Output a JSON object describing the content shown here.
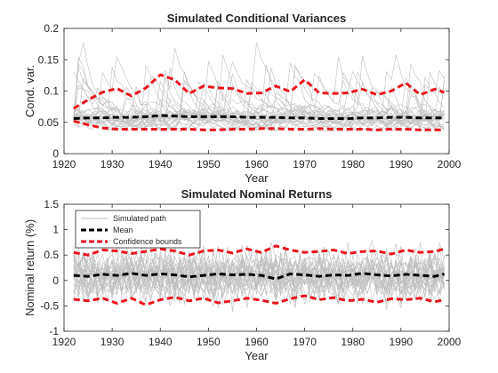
{
  "chart_data": [
    {
      "type": "line",
      "title": "Simulated Conditional Variances",
      "xlabel": "Year",
      "ylabel": "Cond. var.",
      "xlim": [
        1920,
        2000
      ],
      "ylim": [
        0,
        0.2
      ],
      "xticks": [
        1920,
        1930,
        1940,
        1950,
        1960,
        1970,
        1980,
        1990,
        2000
      ],
      "yticks": [
        0,
        0.05,
        0.1,
        0.15,
        0.2
      ],
      "ytick_labels": [
        "0",
        "0.05",
        "0.1",
        "0.15",
        "0.2"
      ],
      "grid": false,
      "legend": null,
      "x": [
        1922,
        1925,
        1928,
        1931,
        1934,
        1937,
        1940,
        1943,
        1946,
        1949,
        1952,
        1955,
        1958,
        1961,
        1964,
        1967,
        1970,
        1973,
        1976,
        1979,
        1982,
        1985,
        1988,
        1991,
        1994,
        1997,
        1999
      ],
      "series": [
        {
          "role": "mean",
          "color": "#000000",
          "values": [
            0.056,
            0.057,
            0.057,
            0.058,
            0.058,
            0.059,
            0.061,
            0.06,
            0.059,
            0.059,
            0.059,
            0.059,
            0.058,
            0.058,
            0.058,
            0.057,
            0.057,
            0.056,
            0.056,
            0.056,
            0.057,
            0.057,
            0.058,
            0.058,
            0.057,
            0.057,
            0.057
          ]
        },
        {
          "role": "upper confidence bound",
          "color": "#e8141c",
          "values": [
            0.072,
            0.086,
            0.098,
            0.104,
            0.092,
            0.105,
            0.126,
            0.118,
            0.096,
            0.108,
            0.105,
            0.104,
            0.096,
            0.097,
            0.108,
            0.099,
            0.118,
            0.097,
            0.096,
            0.097,
            0.103,
            0.094,
            0.1,
            0.113,
            0.094,
            0.103,
            0.098
          ]
        },
        {
          "role": "lower confidence bound",
          "color": "#e8141c",
          "values": [
            0.052,
            0.046,
            0.041,
            0.039,
            0.039,
            0.039,
            0.039,
            0.039,
            0.039,
            0.038,
            0.038,
            0.039,
            0.039,
            0.04,
            0.04,
            0.039,
            0.039,
            0.04,
            0.039,
            0.039,
            0.039,
            0.038,
            0.039,
            0.039,
            0.038,
            0.038,
            0.038
          ]
        }
      ],
      "simulated_paths": {
        "color": "#c0c0c0",
        "count": 30,
        "range_min": 0.036,
        "range_max": 0.18
      }
    },
    {
      "type": "line",
      "title": "Simulated Nominal Returns",
      "xlabel": "Year",
      "ylabel": "Nominal return (%)",
      "xlim": [
        1920,
        2000
      ],
      "ylim": [
        -1,
        1.5
      ],
      "xticks": [
        1920,
        1930,
        1940,
        1950,
        1960,
        1970,
        1980,
        1990,
        2000
      ],
      "yticks": [
        -1,
        -0.5,
        0,
        0.5,
        1,
        1.5
      ],
      "ytick_labels": [
        "-1",
        "-0.5",
        "0",
        "0.5",
        "1",
        "1.5"
      ],
      "grid": false,
      "legend": {
        "placement": "top-left",
        "entries": [
          {
            "label": "Simulated path",
            "color": "#c0c0c0",
            "style": "solid"
          },
          {
            "label": "Mean",
            "color": "#000000",
            "style": "dashed"
          },
          {
            "label": "Confidence bounds",
            "color": "#e8141c",
            "style": "dashed"
          }
        ]
      },
      "x": [
        1922,
        1925,
        1928,
        1931,
        1934,
        1937,
        1940,
        1943,
        1946,
        1949,
        1952,
        1955,
        1958,
        1961,
        1964,
        1967,
        1970,
        1973,
        1976,
        1979,
        1982,
        1985,
        1988,
        1991,
        1994,
        1997,
        1999
      ],
      "series": [
        {
          "role": "mean",
          "color": "#000000",
          "values": [
            0.1,
            0.08,
            0.12,
            0.1,
            0.14,
            0.1,
            0.13,
            0.11,
            0.07,
            0.1,
            0.13,
            0.11,
            0.12,
            0.1,
            0.03,
            0.13,
            0.11,
            0.08,
            0.11,
            0.1,
            0.14,
            0.11,
            0.09,
            0.12,
            0.1,
            0.08,
            0.13
          ]
        },
        {
          "role": "upper confidence bound",
          "color": "#e8141c",
          "values": [
            0.55,
            0.5,
            0.6,
            0.58,
            0.53,
            0.57,
            0.62,
            0.58,
            0.5,
            0.58,
            0.6,
            0.54,
            0.62,
            0.55,
            0.68,
            0.6,
            0.55,
            0.57,
            0.6,
            0.53,
            0.57,
            0.58,
            0.52,
            0.6,
            0.55,
            0.57,
            0.62
          ]
        },
        {
          "role": "lower confidence bound",
          "color": "#e8141c",
          "values": [
            -0.37,
            -0.4,
            -0.35,
            -0.45,
            -0.35,
            -0.48,
            -0.38,
            -0.33,
            -0.4,
            -0.35,
            -0.44,
            -0.4,
            -0.35,
            -0.39,
            -0.45,
            -0.36,
            -0.3,
            -0.38,
            -0.34,
            -0.4,
            -0.37,
            -0.43,
            -0.36,
            -0.38,
            -0.35,
            -0.42,
            -0.38
          ]
        }
      ],
      "simulated_paths": {
        "color": "#c0c0c0",
        "count": 30,
        "range_min": -0.85,
        "range_max": 0.95
      }
    }
  ]
}
